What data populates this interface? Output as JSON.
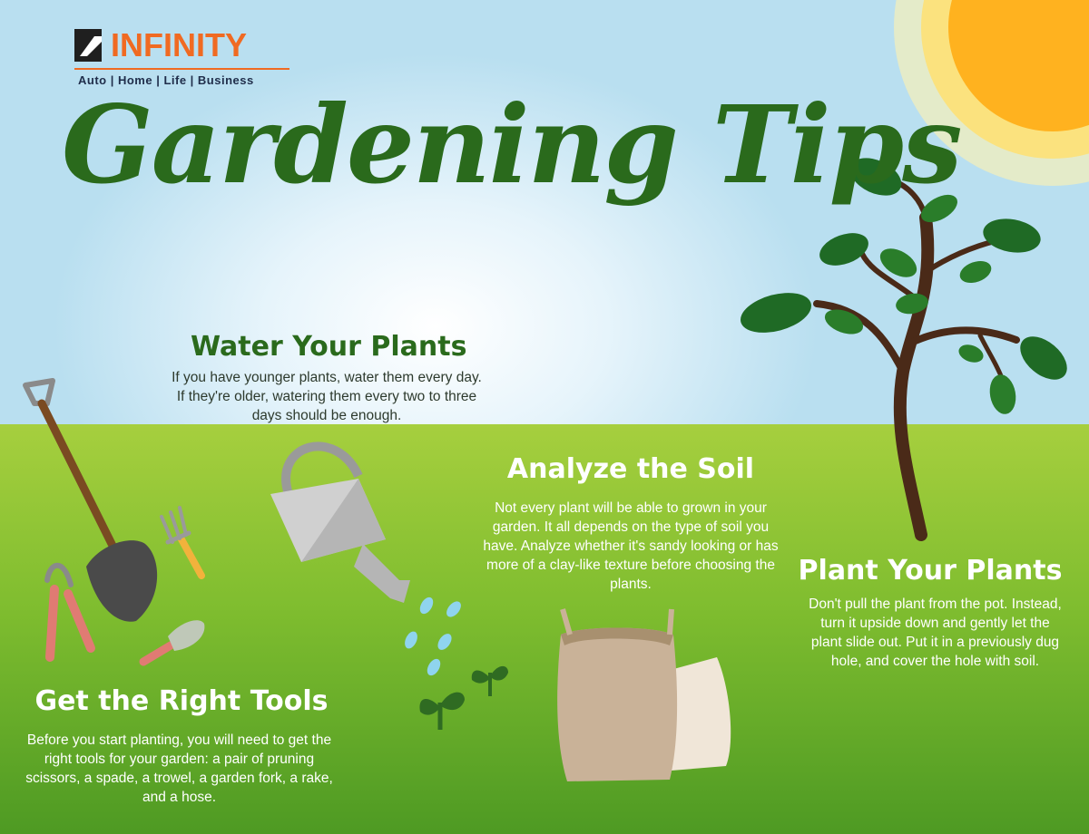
{
  "brand": {
    "name": "INFINITY",
    "registered_mark": ".",
    "tagline": "Auto | Home | Life | Business",
    "color": "#f06a22",
    "tagline_color": "#1f2d4a"
  },
  "title": "Gardening Tips",
  "tips": {
    "water": {
      "heading": "Water Your Plants",
      "text": "If you have younger plants, water them every day. If they're older, watering them every two to three days should be enough."
    },
    "soil": {
      "heading": "Analyze the Soil",
      "text": "Not every plant will be able to grown in your garden. It all depends on the type of soil you have. Analyze whether it's sandy looking or has more of a clay-like texture before choosing the plants."
    },
    "plant": {
      "heading": "Plant Your Plants",
      "text": "Don't pull the plant from the pot. Instead, turn it upside down and gently let the plant slide out. Put it in a previously dug hole, and cover the hole with soil."
    },
    "tools": {
      "heading": "Get the Right Tools",
      "text": "Before you start planting, you will need to get the right tools for your garden: a pair of pruning scissors, a spade, a trowel, a garden fork, a rake, and a hose."
    }
  },
  "colors": {
    "title_green": "#2a6a1c",
    "sky": "#b9dff0",
    "grass": "#7fbd2f",
    "sun": "#ffb21f"
  },
  "icons": [
    "sun-icon",
    "tree-icon",
    "watering-can-icon",
    "spade-icon",
    "garden-fork-icon",
    "pruning-scissors-icon",
    "trowel-icon",
    "soil-bag-icon",
    "sprout-icon",
    "water-drop-icon"
  ]
}
